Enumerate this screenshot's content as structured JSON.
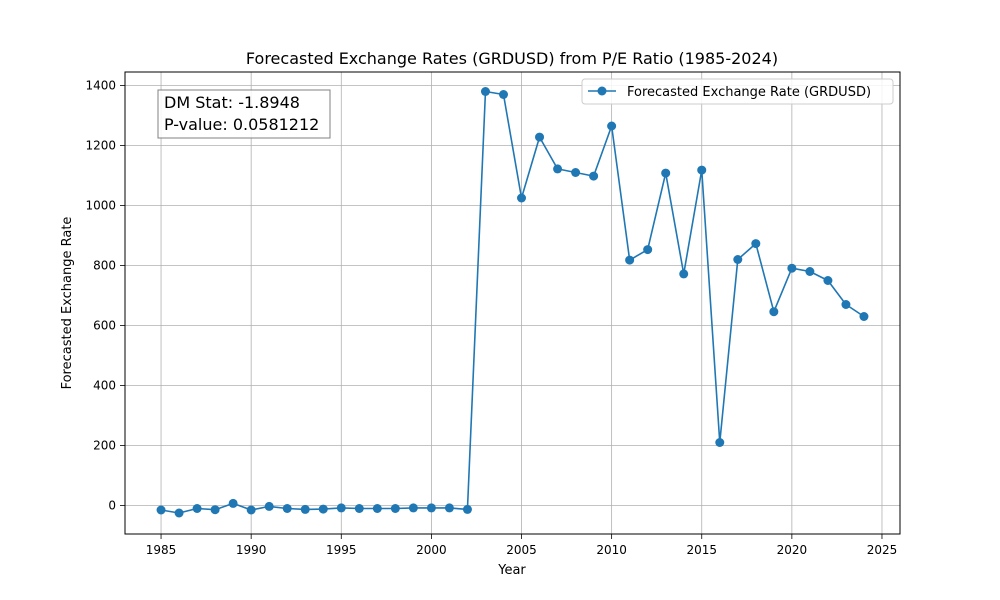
{
  "chart_data": {
    "type": "line",
    "title": "Forecasted Exchange Rates (GRDUSD) from P/E Ratio (1985-2024)",
    "xlabel": "Year",
    "ylabel": "Forecasted Exchange Rate",
    "xlim": [
      1983,
      2026
    ],
    "ylim": [
      -95,
      1445
    ],
    "x_ticks": [
      1985,
      1990,
      1995,
      2000,
      2005,
      2010,
      2015,
      2020,
      2025
    ],
    "y_ticks": [
      0,
      200,
      400,
      600,
      800,
      1000,
      1200,
      1400
    ],
    "grid": true,
    "legend_position": "top-right",
    "color": "#1f77b4",
    "series": [
      {
        "name": "Forecasted Exchange Rate (GRDUSD)",
        "x": [
          1985,
          1986,
          1987,
          1988,
          1989,
          1990,
          1991,
          1992,
          1993,
          1994,
          1995,
          1996,
          1997,
          1998,
          1999,
          2000,
          2001,
          2002,
          2003,
          2004,
          2005,
          2006,
          2007,
          2008,
          2009,
          2010,
          2011,
          2012,
          2013,
          2014,
          2015,
          2016,
          2017,
          2018,
          2019,
          2020,
          2021,
          2022,
          2023,
          2024
        ],
        "values": [
          -15,
          -25,
          -10,
          -14,
          7,
          -15,
          -3,
          -10,
          -13,
          -12,
          -8,
          -10,
          -10,
          -10,
          -8,
          -8,
          -8,
          -13,
          1380,
          1370,
          1025,
          1228,
          1122,
          1110,
          1098,
          1265,
          818,
          853,
          1108,
          772,
          1118,
          210,
          820,
          873,
          646,
          791,
          780,
          750,
          670,
          630
        ]
      }
    ],
    "annotation": {
      "line1": "DM Stat: -1.8948",
      "line2": "P-value: 0.0581212"
    }
  }
}
